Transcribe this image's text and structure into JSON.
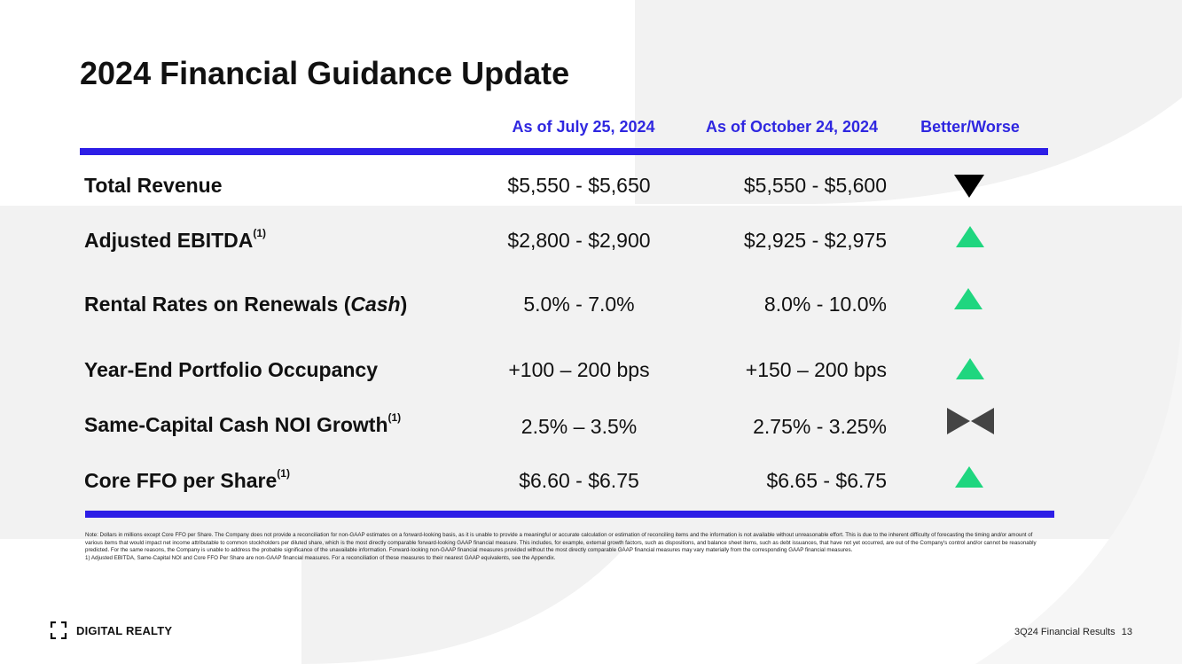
{
  "title": "2024 Financial Guidance Update",
  "columns": {
    "july": "As of July 25, 2024",
    "october": "As of October 24, 2024",
    "better_worse": "Better/Worse"
  },
  "colors": {
    "accent_blue": "#2d1ee6",
    "header_text": "#2f27e0",
    "better_green": "#1fd67f",
    "worse_black": "#000000",
    "neutral_gray": "#444444"
  },
  "rows": [
    {
      "label": "Total Revenue",
      "sup": "",
      "july": "$5,550 - $5,650",
      "october": "$5,550 - $5,600",
      "indicator": "worse-down-triangle-icon"
    },
    {
      "label": "Adjusted EBITDA",
      "sup": "(1)",
      "july": "$2,800 - $2,900",
      "october": "$2,925 - $2,975",
      "indicator": "better-up-triangle-icon"
    },
    {
      "label_prefix": "Rental Rates on Renewals (",
      "label_italic": "Cash",
      "label_suffix": ")",
      "july": "5.0% - 7.0%",
      "october": "8.0% - 10.0%",
      "indicator": "better-up-triangle-icon"
    },
    {
      "label": "Year-End Portfolio Occupancy",
      "sup": "",
      "july": "+100 – 200 bps",
      "october": "+150 – 200 bps",
      "indicator": "better-up-triangle-icon"
    },
    {
      "label": "Same-Capital Cash NOI Growth",
      "sup": "(1)",
      "july": "2.5% – 3.5%",
      "october": "2.75% - 3.25%",
      "indicator": "neutral-bowtie-icon"
    },
    {
      "label": "Core FFO per Share",
      "sup": "(1)",
      "july": "$6.60 - $6.75",
      "october": "$6.65 - $6.75",
      "indicator": "better-up-triangle-icon"
    }
  ],
  "note": {
    "main": "Note: Dollars in millions except Core FFO per Share. The Company does not provide a reconciliation for non-GAAP estimates on a forward-looking basis, as it is unable to provide a meaningful or accurate calculation or estimation of reconciling items and the information is not available without unreasonable effort. This is due to the inherent difficulty of forecasting the timing and/or amount of various items that would impact net income attributable to common stockholders per diluted share, which is the most directly comparable forward-looking GAAP financial measure. This includes, for example, external growth factors, such as dispositions, and balance sheet items, such as debt issuances, that have not yet occurred, are out of the Company's control and/or cannot be reasonably predicted. For the same reasons, the Company is unable to address the probable significance of the unavailable information. Forward-looking non-GAAP financial measures provided without the most directly comparable GAAP financial measures may vary materially from the corresponding GAAP financial measures.",
    "footnote": "1) Adjusted EBITDA, Same-Capital NOI and Core FFO Per Share are non-GAAP financial measures. For a reconciliation of these measures to their nearest GAAP equivalents, see the Appendix."
  },
  "brand": {
    "name": "DIGITAL REALTY",
    "logo_icon": "bracket-logo-icon"
  },
  "footer": {
    "text": "3Q24 Financial Results",
    "page_number": "13"
  }
}
